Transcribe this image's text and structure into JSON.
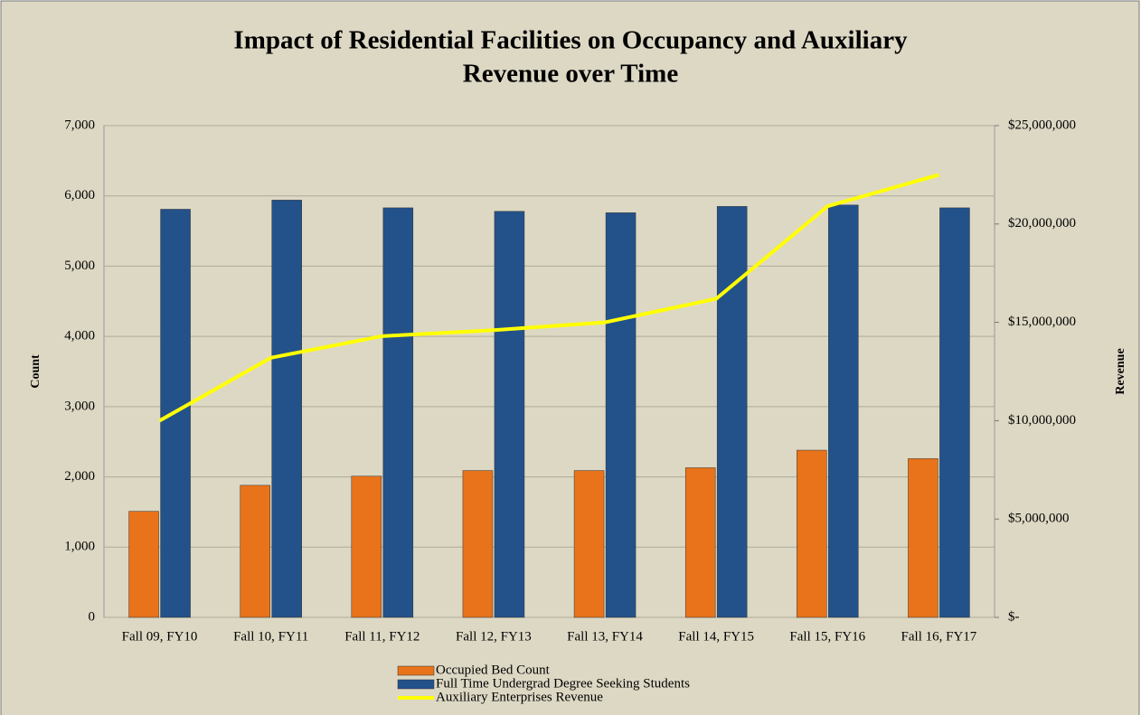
{
  "chart_data": {
    "type": "bar",
    "title": [
      "Impact of Residential Facilities on Occupancy and Auxiliary",
      "Revenue over Time"
    ],
    "y_label": "Count",
    "y2_label": "Revenue",
    "categories": [
      "Fall 09, FY10",
      "Fall 10, FY11",
      "Fall 11, FY12",
      "Fall 12, FY13",
      "Fall 13, FY14",
      "Fall 14, FY15",
      "Fall 15, FY16",
      "Fall 16, FY17"
    ],
    "series": [
      {
        "name": "Occupied Bed Count",
        "type": "bar",
        "color": "#e8731a",
        "values": [
          1510,
          1880,
          2010,
          2090,
          2090,
          2130,
          2380,
          2260
        ]
      },
      {
        "name": "Full Time Undergrad Degree Seeking Students",
        "type": "bar",
        "color": "#23518a",
        "values": [
          5810,
          5940,
          5830,
          5780,
          5760,
          5850,
          5870,
          5830
        ]
      },
      {
        "name": "Auxiliary Enterprises Revenue",
        "type": "line",
        "axis": "y2",
        "color": "#ffff00",
        "values": [
          10000000,
          13200000,
          14300000,
          14600000,
          15000000,
          16200000,
          20900000,
          22500000
        ]
      }
    ],
    "ylim": [
      0,
      7000
    ],
    "yticks": [
      0,
      {
        "value": 1000,
        "label": "1,000"
      },
      {
        "value": 2000,
        "label": "2,000"
      },
      {
        "value": 3000,
        "label": "3,000"
      },
      {
        "value": 4000,
        "label": "4,000"
      },
      {
        "value": 5000,
        "label": "5,000"
      },
      {
        "value": 6000,
        "label": "6,000"
      },
      {
        "value": 7000,
        "label": "7,000"
      }
    ],
    "y2lim": [
      0,
      25000000
    ],
    "y2ticks": [
      {
        "value": 0,
        "label": "$-"
      },
      {
        "value": 5000000,
        "label": "$5,000,000"
      },
      {
        "value": 10000000,
        "label": "$10,000,000"
      },
      {
        "value": 15000000,
        "label": "$15,000,000"
      },
      {
        "value": 20000000,
        "label": "$20,000,000"
      },
      {
        "value": 25000000,
        "label": "$25,000,000"
      }
    ],
    "grid": true,
    "legend": "bottom"
  }
}
